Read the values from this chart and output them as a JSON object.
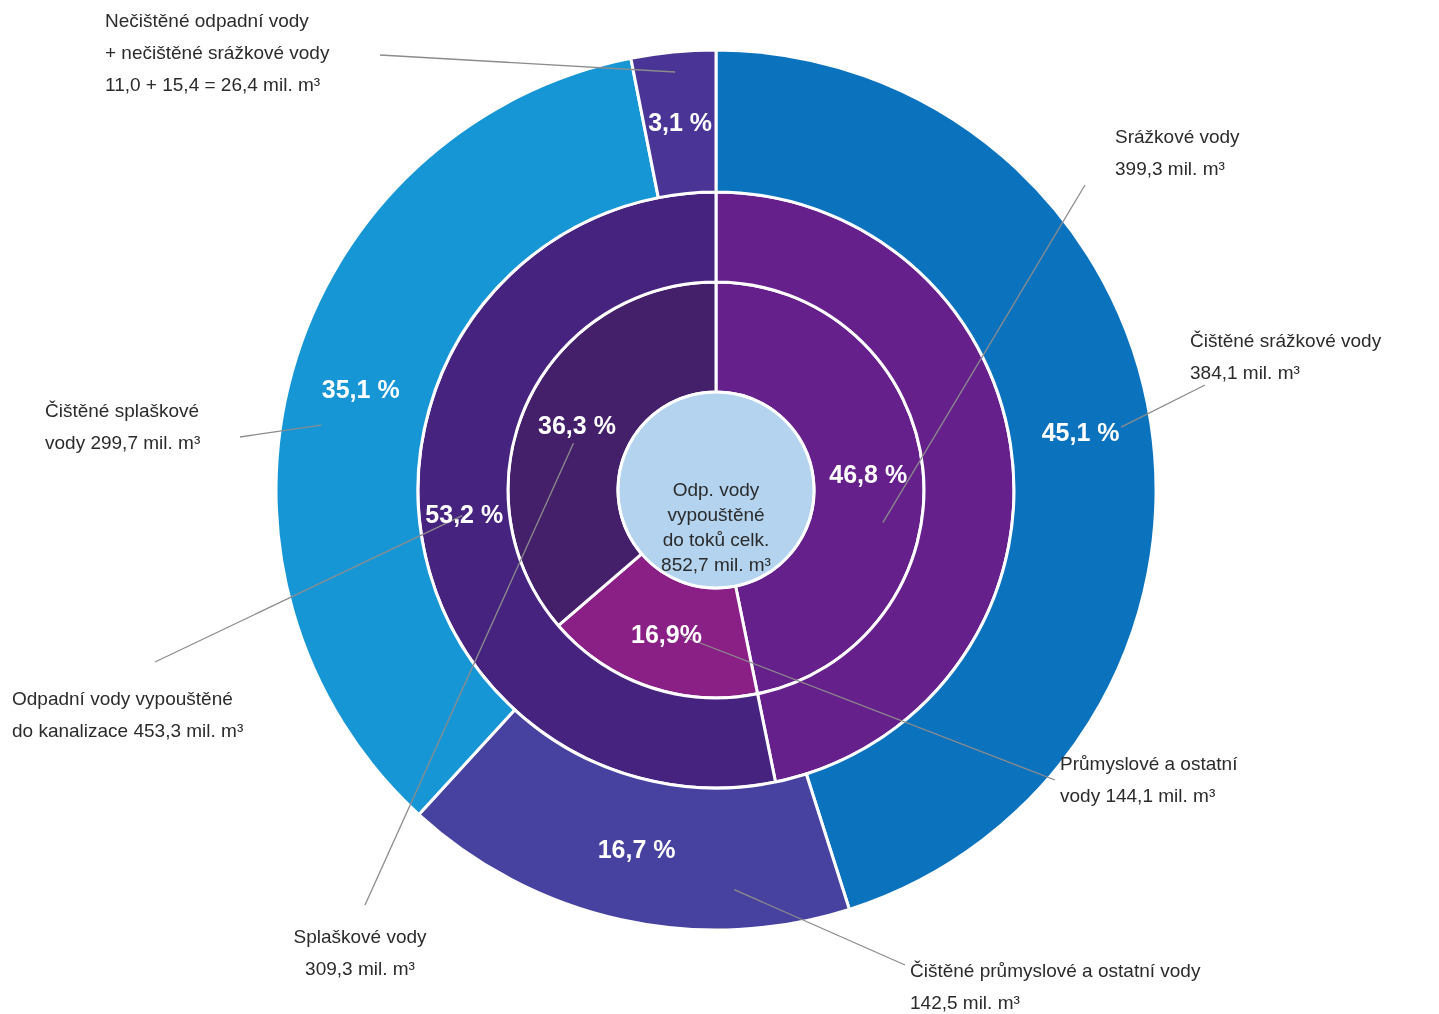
{
  "chart_data": {
    "type": "donut",
    "annotations": [
      "Odp. vody\nvypouštěné\ndo toků celk.\n852,7 mil. m³",
      "Srážkové vody\n399,3 mil. m³",
      "Průmyslové a ostatní\nvody 144,1 mil. m³",
      "Splaškové vody\n309,3 mil. m³",
      "Odpadní vody vypouštěné\ndo kanalizace 453,3 mil. m³",
      "Čištěné srážkové vody\n384,1 mil. m³",
      "Čištěné průmyslové a ostatní vody\n142,5 mil. m³",
      "Čištěné splaškové\nvody  299,7 mil. m³",
      "Nečištěné odpadní vody\n+ nečištěné srážkové vody\n11,0 + 15,4 = 26,4 mil. m³"
    ],
    "series": [
      {
        "values": [
          46.8,
          16.9,
          36.3
        ],
        "colors": [
          "#66208c",
          "#8a1f86",
          "#44206a"
        ],
        "value_labels": [
          "46,8 %",
          "16,9%",
          "36,3 %"
        ]
      },
      {
        "values": [
          46.8,
          53.2
        ],
        "colors": [
          "#66208c",
          "#46237f"
        ],
        "value_labels": [
          null,
          "53,2 %"
        ]
      },
      {
        "values": [
          45.1,
          16.7,
          35.1,
          3.1
        ],
        "colors": [
          "#0b72bd",
          "#47419f",
          "#1796d6",
          "#4a3596"
        ],
        "value_labels": [
          "45,1 %",
          "16,7 %",
          "35,1 %",
          "3,1 %"
        ]
      }
    ]
  }
}
